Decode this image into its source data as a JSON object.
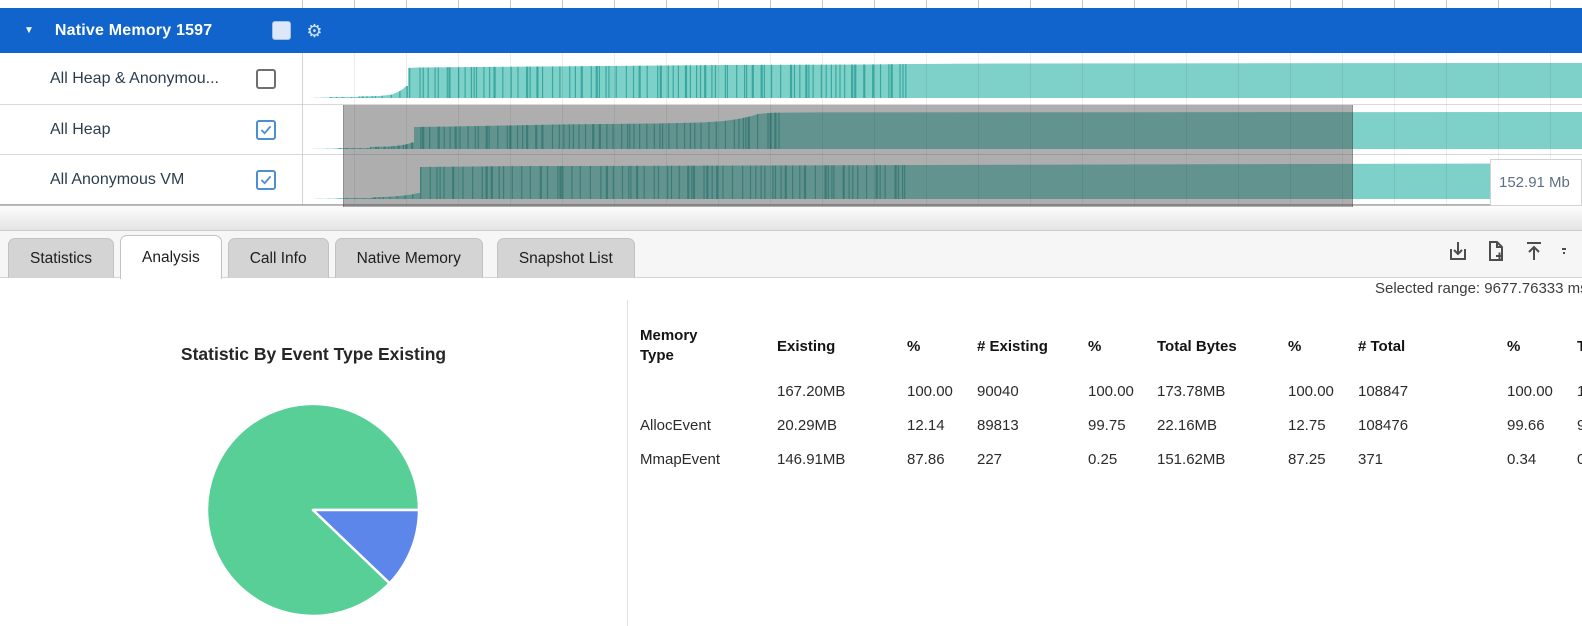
{
  "timeline": {
    "group_header": {
      "title": "Native Memory 1597",
      "checkbox_checked": false
    },
    "tracks": [
      {
        "label": "All Heap & Anonymou...",
        "checked": false
      },
      {
        "label": "All Heap",
        "checked": true
      },
      {
        "label": "All Anonymous VM",
        "checked": true
      }
    ],
    "value_tooltip": "152.91 Mb"
  },
  "tabs": {
    "items": [
      "Statistics",
      "Analysis",
      "Call Info",
      "Native Memory",
      "Snapshot List"
    ],
    "active": "Analysis"
  },
  "toolbar": {
    "icons": [
      "export-to-bottom",
      "add-capture",
      "scroll-to-top",
      "more-partial"
    ]
  },
  "selected_range": "Selected range: 9677.76333 ms",
  "analysis": {
    "pie_title": "Statistic By Event Type Existing",
    "table": {
      "headers": [
        "Memory Type",
        "Existing",
        "%",
        "# Existing",
        "%",
        "Total Bytes",
        "%",
        "# Total",
        "%",
        "T"
      ],
      "rows": [
        [
          "",
          "167.20MB",
          "100.00",
          "90040",
          "100.00",
          "173.78MB",
          "100.00",
          "108847",
          "100.00",
          "1"
        ],
        [
          "AllocEvent",
          "20.29MB",
          "12.14",
          "89813",
          "99.75",
          "22.16MB",
          "12.75",
          "108476",
          "99.66",
          "9"
        ],
        [
          "MmapEvent",
          "146.91MB",
          "87.86",
          "227",
          "0.25",
          "151.62MB",
          "87.25",
          "371",
          "0.34",
          "0"
        ]
      ]
    }
  },
  "chart_data": [
    {
      "type": "pie",
      "title": "Statistic By Event Type Existing",
      "labels": [
        "MmapEvent",
        "AllocEvent"
      ],
      "values": [
        87.86,
        12.14
      ],
      "colors": [
        "#57cf96",
        "#5c86ea"
      ],
      "legend": "none"
    },
    {
      "type": "area",
      "title": "Native Memory 1597 timeline",
      "series": [
        "All Heap & Anonymous VM",
        "All Heap",
        "All Anonymous VM"
      ],
      "color": "#7ed1c9",
      "annotation": "152.91 Mb",
      "selection": true
    }
  ],
  "colors": {
    "accent_blue": "#1164cb",
    "teal": "#7ed1c9",
    "teal_dark": "#2b9e97",
    "pie_green": "#57cf96",
    "pie_blue": "#5c86ea"
  }
}
